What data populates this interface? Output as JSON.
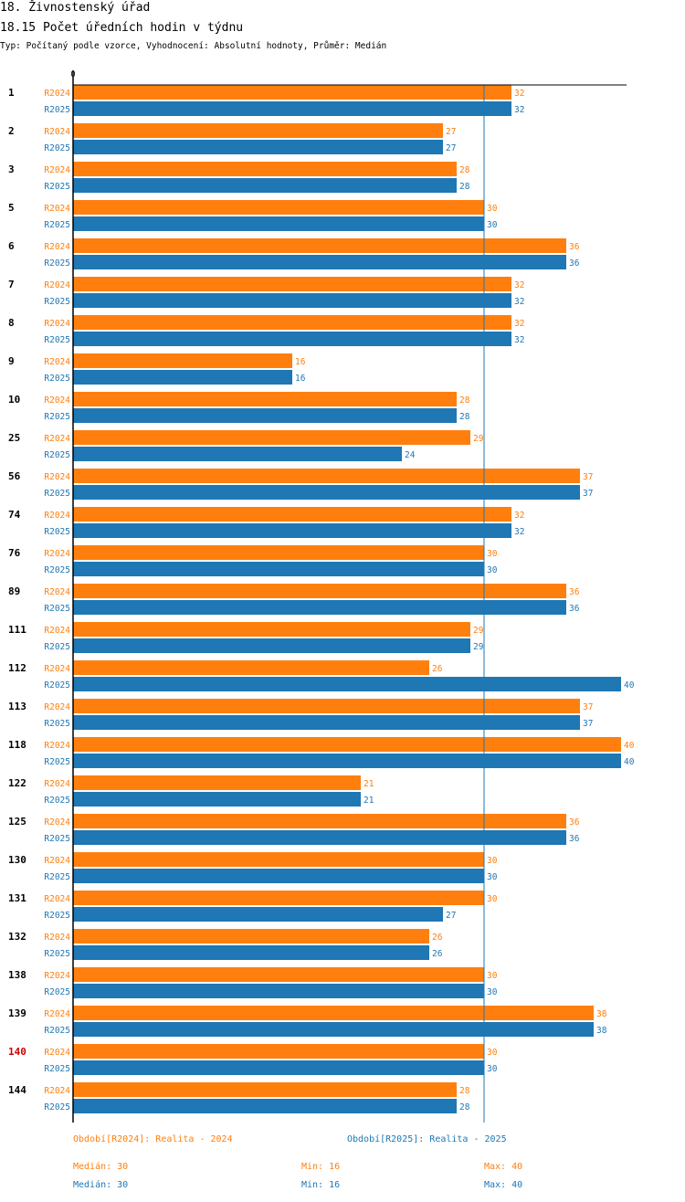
{
  "header": {
    "title": "18. Živnostenský úřad",
    "subtitle": "18.15 Počet úředních hodin v týdnu",
    "meta": "Typ: Počítaný podle vzorce, Vyhodnocení: Absolutní hodnoty, Průměr: Medián"
  },
  "colors": {
    "r2024": "#ff7f0e",
    "r2025": "#1f77b4",
    "highlight": "#cc0000",
    "axis": "#000000"
  },
  "chart_data": {
    "type": "bar",
    "orientation": "horizontal",
    "title": "18.15 Počet úředních hodin v týdnu",
    "axis_zero_label": "0",
    "xlim": [
      0,
      40
    ],
    "reference_line": 30,
    "series_names": [
      "R2024",
      "R2025"
    ],
    "highlighted_category": "140",
    "categories": [
      "1",
      "2",
      "3",
      "5",
      "6",
      "7",
      "8",
      "9",
      "10",
      "25",
      "56",
      "74",
      "76",
      "89",
      "111",
      "112",
      "113",
      "118",
      "122",
      "125",
      "130",
      "131",
      "132",
      "138",
      "139",
      "140",
      "144"
    ],
    "series": [
      {
        "name": "R2024",
        "values": [
          32,
          27,
          28,
          30,
          36,
          32,
          32,
          16,
          28,
          29,
          37,
          32,
          30,
          36,
          29,
          26,
          37,
          40,
          21,
          36,
          30,
          30,
          26,
          30,
          38,
          30,
          28
        ]
      },
      {
        "name": "R2025",
        "values": [
          32,
          27,
          28,
          30,
          36,
          32,
          32,
          16,
          28,
          24,
          37,
          32,
          30,
          36,
          29,
          40,
          37,
          40,
          21,
          36,
          30,
          27,
          26,
          30,
          38,
          30,
          28
        ]
      }
    ]
  },
  "legend": {
    "r2024": "Období[R2024]: Realita - 2024",
    "r2025": "Období[R2025]: Realita - 2025"
  },
  "stats": {
    "r2024": {
      "median": "Medián: 30",
      "min": "Min: 16",
      "max": "Max: 40"
    },
    "r2025": {
      "median": "Medián: 30",
      "min": "Min: 16",
      "max": "Max: 40"
    }
  }
}
